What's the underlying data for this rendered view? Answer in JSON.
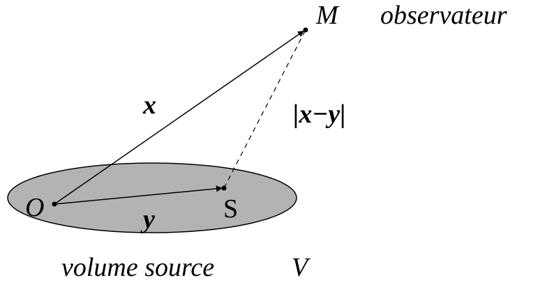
{
  "labels": {
    "observer_point": "M",
    "observer": "observateur",
    "x_vector": "x",
    "distance": "|x−y|",
    "origin": "O",
    "y_vector": "y",
    "source_point": "S",
    "volume_label": "volume source",
    "volume_symbol": "V"
  }
}
